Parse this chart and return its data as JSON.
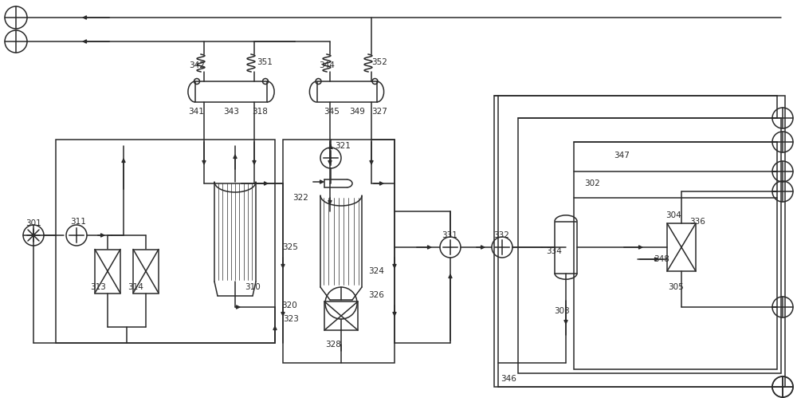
{
  "bg": "#ffffff",
  "lc": "#2a2a2a",
  "lw": 1.1,
  "figsize": [
    10.0,
    4.99
  ],
  "dpi": 100
}
